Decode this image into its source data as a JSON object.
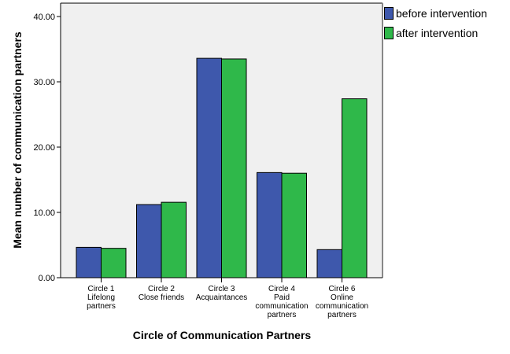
{
  "chart_data": {
    "type": "bar",
    "title": "",
    "xlabel": "Circle of Communication Partners",
    "ylabel": "Mean number of communication partners",
    "ylim": [
      0,
      40
    ],
    "yticks": [
      "0.00",
      "10.00",
      "20.00",
      "30.00",
      "40.00"
    ],
    "grid": false,
    "legend_position": "right",
    "categories": [
      "Circle 1 Lifelong partners",
      "Circle 2 Close friends",
      "Circle 3 Acquaintances",
      "Circle 4 Paid communication partners",
      "Circle 6 Online communication partners"
    ],
    "category_label_lines": [
      [
        "Circle 1",
        "Lifelong",
        "partners"
      ],
      [
        "Circle 2",
        "Close friends"
      ],
      [
        "Circle 3",
        "Acquaintances"
      ],
      [
        "Circle 4",
        "Paid",
        "communication",
        "partners"
      ],
      [
        "Circle 6",
        "Online",
        "communication",
        "partners"
      ]
    ],
    "series": [
      {
        "name": "before intervention",
        "color": "#3e58ac",
        "values": [
          4.65,
          11.2,
          33.6,
          16.1,
          4.3
        ]
      },
      {
        "name": "after intervention",
        "color": "#2fb84a",
        "values": [
          4.5,
          11.55,
          33.5,
          16.0,
          27.4
        ]
      }
    ]
  },
  "colors": {
    "plot_background": "#f0f0f0",
    "axis": "#000000",
    "plot_border": "#888888"
  }
}
